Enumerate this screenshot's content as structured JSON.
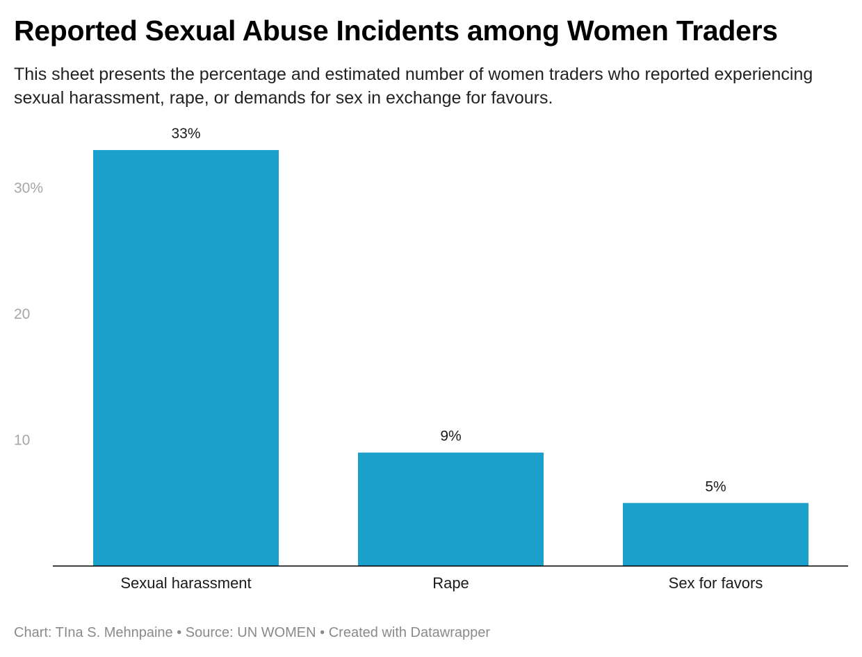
{
  "title": "Reported Sexual Abuse Incidents among Women Traders",
  "subtitle": "This sheet presents the percentage and estimated number of women traders who reported experiencing sexual harassment, rape, or demands for sex in exchange for favours.",
  "footer": {
    "chart_credit": "Chart: TIna S. Mehnpaine",
    "separator": " • ",
    "source": "Source: UN WOMEN",
    "created_with": "Created with Datawrapper"
  },
  "colors": {
    "bar": "#1ba0cb",
    "axis_line": "#000000",
    "tick_label": "#a6a6a6",
    "footer": "#8a8a8a"
  },
  "chart_data": {
    "type": "bar",
    "categories": [
      "Sexual harassment",
      "Rape",
      "Sex for favors"
    ],
    "values": [
      33,
      9,
      5
    ],
    "value_labels": [
      "33%",
      "9%",
      "5%"
    ],
    "y_ticks": [
      {
        "value": 10,
        "label": "10"
      },
      {
        "value": 20,
        "label": "20"
      },
      {
        "value": 30,
        "label": "30%"
      }
    ],
    "ylim": [
      0,
      33
    ],
    "grid": false,
    "xlabel": "",
    "ylabel": ""
  }
}
